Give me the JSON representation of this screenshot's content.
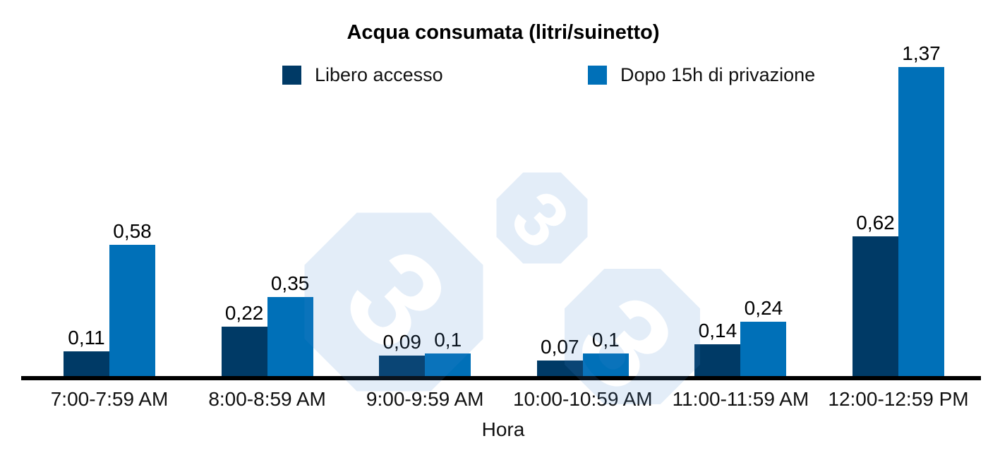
{
  "title": "Acqua consumata (litri/suinetto)",
  "watermark": {
    "digits": [
      "3",
      "3",
      "3"
    ]
  },
  "chart_data": {
    "type": "bar",
    "title": "Acqua consumata (litri/suinetto)",
    "xlabel": "Hora",
    "ylabel": "",
    "ylim": [
      0,
      1.45
    ],
    "grid": false,
    "legend_position": "top",
    "categories": [
      "7:00-7:59 AM",
      "8:00-8:59 AM",
      "9:00-9:59 AM",
      "10:00-10:59 AM",
      "11:00-11:59 AM",
      "12:00-12:59 PM"
    ],
    "series": [
      {
        "name": "Libero accesso",
        "color": "#003A66",
        "values": [
          0.11,
          0.22,
          0.09,
          0.07,
          0.14,
          0.62
        ],
        "value_labels": [
          "0,11",
          "0,22",
          "0,09",
          "0,07",
          "0,14",
          "0,62"
        ]
      },
      {
        "name": "Dopo 15h di privazione",
        "color": "#0070B8",
        "values": [
          0.58,
          0.35,
          0.1,
          0.1,
          0.24,
          1.37
        ],
        "value_labels": [
          "0,58",
          "0,35",
          "0,1",
          "0,1",
          "0,24",
          "1,37"
        ]
      }
    ],
    "axis_color": "#000000",
    "watermark_tint": "#E3EDF8"
  }
}
